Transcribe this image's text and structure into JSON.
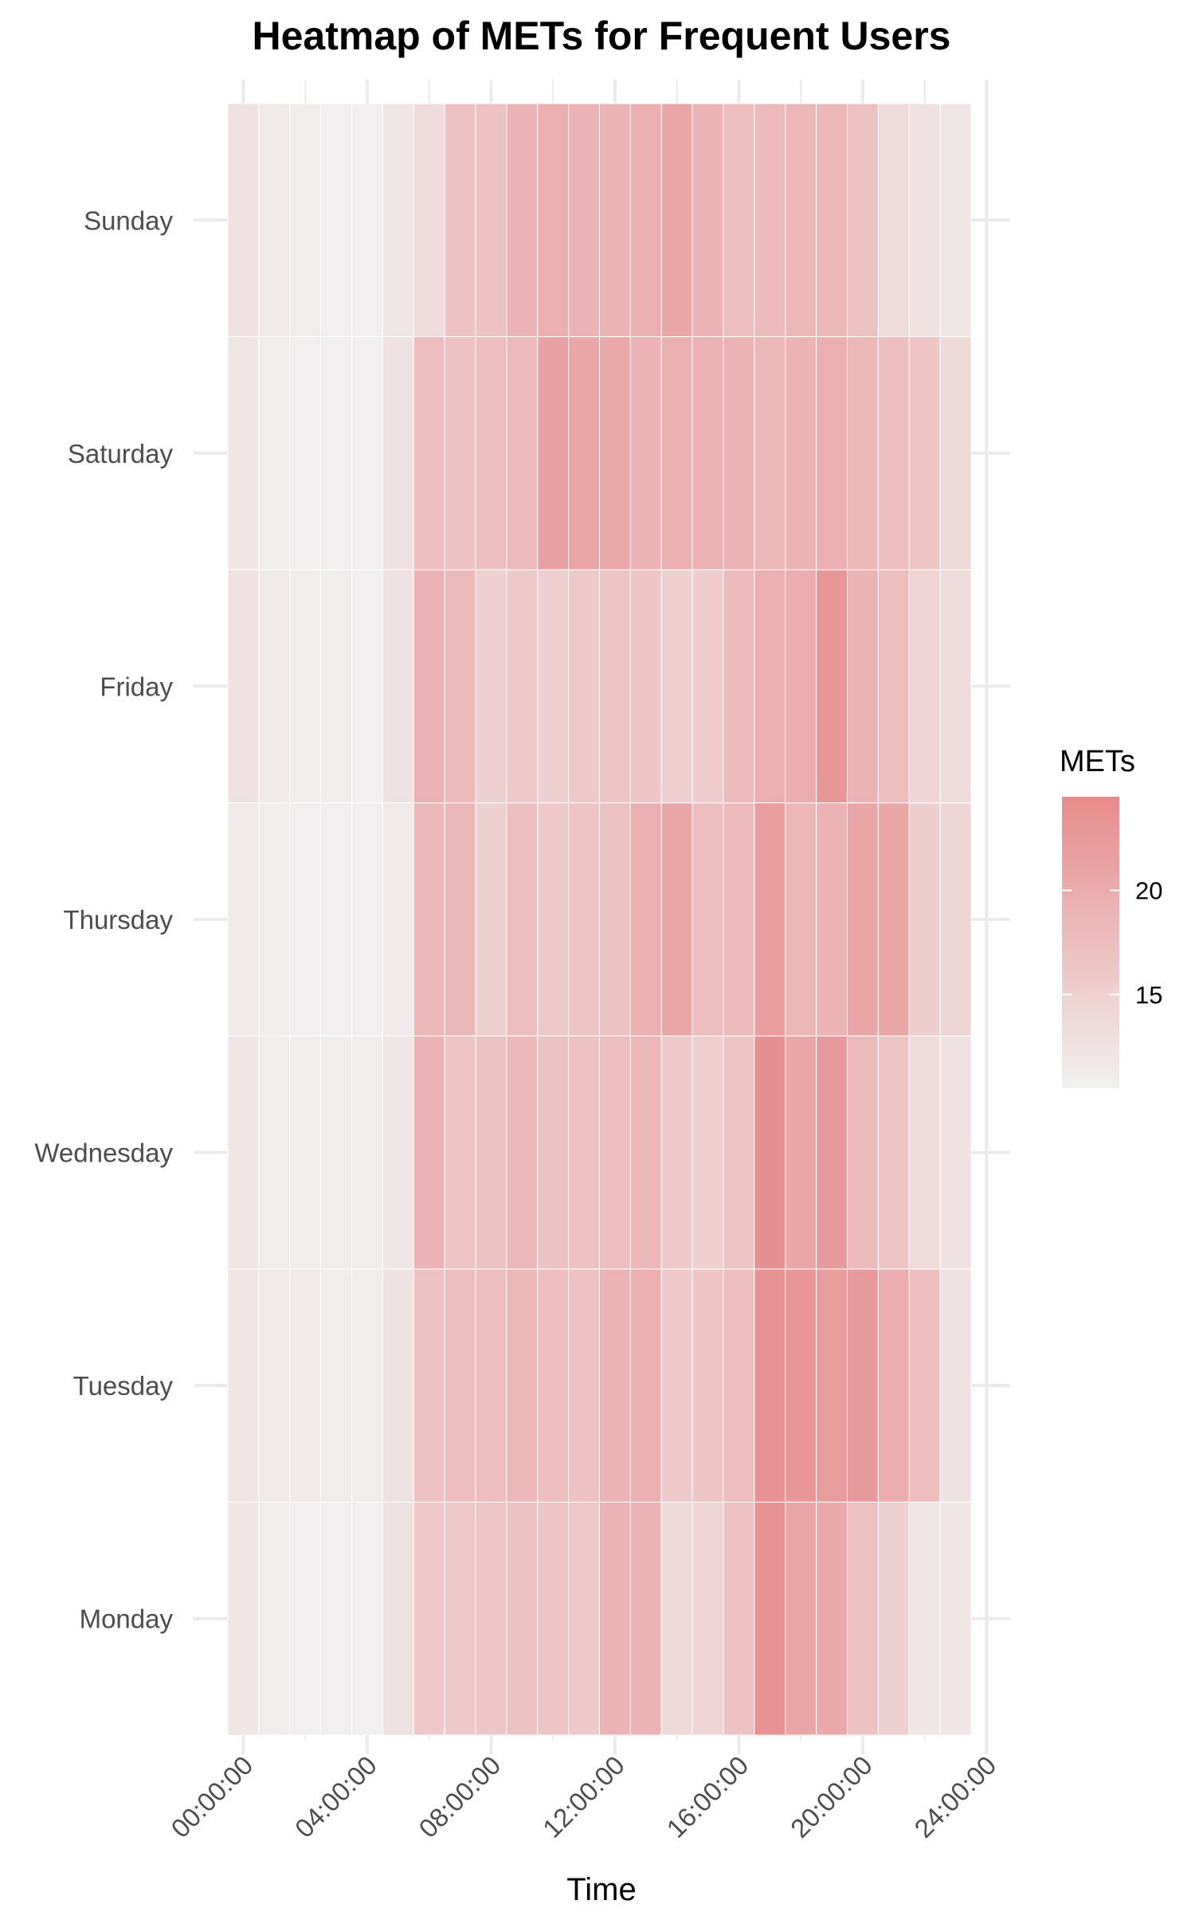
{
  "chart_data": {
    "type": "heatmap",
    "title": "Heatmap of METs for Frequent Users",
    "xlabel": "Time",
    "ylabel": "",
    "x_unit": "hour of day",
    "x_tick_values": [
      0,
      4,
      8,
      12,
      16,
      20,
      24
    ],
    "x_tick_labels": [
      "00:00:00",
      "04:00:00",
      "08:00:00",
      "12:00:00",
      "16:00:00",
      "20:00:00",
      "24:00:00"
    ],
    "xlim": [
      0,
      24
    ],
    "hours": [
      0,
      1,
      2,
      3,
      4,
      5,
      6,
      7,
      8,
      9,
      10,
      11,
      12,
      13,
      14,
      15,
      16,
      17,
      18,
      19,
      20,
      21,
      22,
      23
    ],
    "days": [
      "Monday",
      "Tuesday",
      "Wednesday",
      "Thursday",
      "Friday",
      "Saturday",
      "Sunday"
    ],
    "values": [
      [
        12.0,
        11.0,
        10.8,
        10.8,
        10.8,
        12.5,
        16.0,
        16.0,
        16.2,
        17.0,
        16.5,
        16.0,
        19.0,
        19.0,
        14.0,
        14.5,
        17.0,
        23.5,
        21.0,
        20.5,
        17.0,
        15.0,
        12.0,
        12.0
      ],
      [
        12.0,
        11.5,
        11.5,
        11.0,
        11.0,
        12.5,
        17.0,
        17.5,
        17.5,
        18.5,
        17.5,
        17.0,
        19.0,
        19.5,
        16.0,
        16.5,
        17.5,
        23.5,
        23.0,
        22.0,
        22.5,
        20.0,
        17.5,
        12.5
      ],
      [
        12.0,
        11.0,
        11.0,
        11.0,
        11.0,
        12.0,
        19.0,
        16.5,
        17.0,
        18.5,
        17.0,
        17.0,
        17.5,
        18.5,
        16.0,
        15.0,
        16.5,
        24.0,
        21.0,
        22.5,
        18.0,
        16.5,
        13.5,
        12.5
      ],
      [
        11.5,
        11.0,
        10.8,
        10.8,
        10.8,
        11.5,
        18.5,
        18.5,
        15.0,
        17.5,
        16.0,
        16.5,
        17.0,
        19.5,
        21.0,
        17.5,
        18.0,
        22.0,
        18.5,
        19.0,
        21.0,
        21.0,
        15.5,
        14.5
      ],
      [
        12.5,
        11.5,
        11.0,
        11.0,
        10.8,
        12.5,
        19.0,
        18.0,
        15.0,
        16.0,
        15.0,
        16.0,
        16.5,
        16.5,
        15.0,
        15.5,
        18.0,
        19.5,
        20.0,
        23.0,
        19.0,
        17.5,
        14.5,
        13.5
      ],
      [
        12.0,
        11.0,
        10.8,
        10.8,
        10.8,
        12.5,
        17.5,
        17.0,
        17.5,
        18.0,
        21.5,
        21.0,
        20.5,
        19.0,
        19.5,
        19.0,
        19.0,
        18.5,
        19.0,
        19.5,
        18.5,
        17.5,
        16.5,
        14.0
      ],
      [
        12.5,
        11.5,
        11.0,
        10.8,
        10.8,
        12.0,
        13.5,
        17.0,
        17.0,
        19.0,
        19.5,
        19.0,
        19.0,
        19.5,
        21.0,
        19.0,
        17.5,
        18.0,
        18.5,
        18.5,
        17.0,
        13.5,
        12.5,
        12.0
      ]
    ],
    "colorbar": {
      "title": "METs",
      "min": 10.5,
      "max": 24.5,
      "low_color": "#f1f1f1",
      "high_color": "#e78b8b",
      "ticks": [
        15,
        20
      ],
      "tick_labels": [
        "15",
        "20"
      ]
    },
    "grid": true,
    "legend_position": "right",
    "colors": {
      "grid": "#ebebeb",
      "cell_border": "#ffffff",
      "tick_label": "#4d4d4d"
    }
  }
}
